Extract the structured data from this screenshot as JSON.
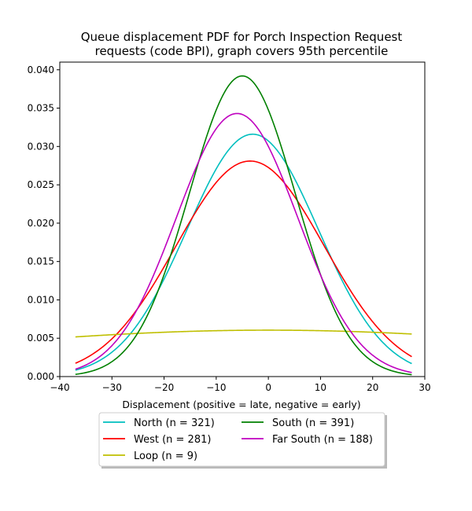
{
  "chart_data": {
    "type": "line",
    "title_lines": [
      "Queue displacement PDF for Porch Inspection Request",
      "requests (code BPI), graph covers 95th percentile"
    ],
    "xlabel": "Displacement (positive = late, negative = early)",
    "ylabel": "",
    "xlim": [
      -40,
      30
    ],
    "ylim": [
      0,
      0.041
    ],
    "x_range_plotted": [
      -37,
      27.5
    ],
    "xticks": [
      -40,
      -30,
      -20,
      -10,
      0,
      10,
      20,
      30
    ],
    "xtick_labels": [
      "−40",
      "−30",
      "−20",
      "−10",
      "0",
      "10",
      "20",
      "30"
    ],
    "yticks": [
      0.0,
      0.005,
      0.01,
      0.015,
      0.02,
      0.025,
      0.03,
      0.035,
      0.04
    ],
    "ytick_labels": [
      "0.000",
      "0.005",
      "0.010",
      "0.015",
      "0.020",
      "0.025",
      "0.030",
      "0.035",
      "0.040"
    ],
    "grid": false,
    "legend_position": "below plot, two columns",
    "series": [
      {
        "name": "North (n = 321)",
        "color": "#00bfbf",
        "mean": -3,
        "sd": 12.6,
        "peak": 0.0316
      },
      {
        "name": "West (n = 281)",
        "color": "#ff0000",
        "mean": -3.5,
        "sd": 14.2,
        "peak": 0.0281
      },
      {
        "name": "Loop (n = 9)",
        "color": "#bfbf00",
        "mean": 0,
        "sd": 66,
        "peak": 0.00605
      },
      {
        "name": "South (n = 391)",
        "color": "#008000",
        "mean": -5,
        "sd": 10.2,
        "peak": 0.0392
      },
      {
        "name": "Far South (n = 188)",
        "color": "#bf00bf",
        "mean": -6,
        "sd": 11.6,
        "peak": 0.0343
      }
    ]
  }
}
